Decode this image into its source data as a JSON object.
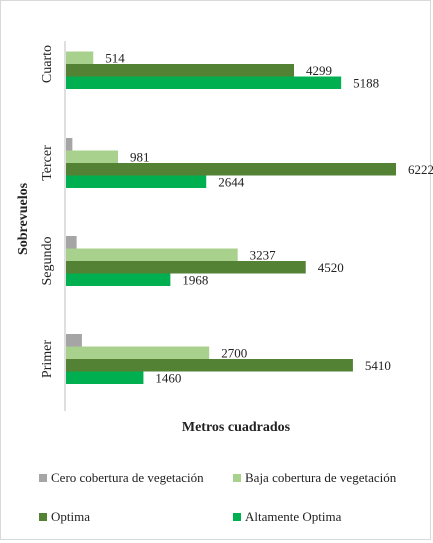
{
  "chart_data": {
    "type": "bar",
    "orientation": "horizontal",
    "categories": [
      "Primer",
      "Segundo",
      "Tercer",
      "Cuarto"
    ],
    "series": [
      {
        "name": "Cero cobertura de vegetación",
        "color": "#a5a5a5",
        "values": [
          300,
          200,
          120,
          null
        ],
        "labels": [
          "",
          "",
          "",
          ""
        ]
      },
      {
        "name": "Baja cobertura de vegetación",
        "color": "#a9d18e",
        "values": [
          2700,
          3237,
          981,
          514
        ],
        "labels": [
          "2700",
          "3237",
          "981",
          "514"
        ]
      },
      {
        "name": "Optima",
        "color": "#548235",
        "values": [
          5410,
          4520,
          6222,
          4299
        ],
        "labels": [
          "5410",
          "4520",
          "6222",
          "4299"
        ]
      },
      {
        "name": "Altamente Optima",
        "color": "#00b050",
        "values": [
          1460,
          1968,
          2644,
          5188
        ],
        "labels": [
          "1460",
          "1968",
          "2644",
          "5188"
        ]
      }
    ],
    "xlabel": "Metros cuadrados",
    "ylabel": "Sobrevuelos",
    "xlim": [
      0,
      8000
    ],
    "grid": false,
    "legend_position": "bottom"
  }
}
